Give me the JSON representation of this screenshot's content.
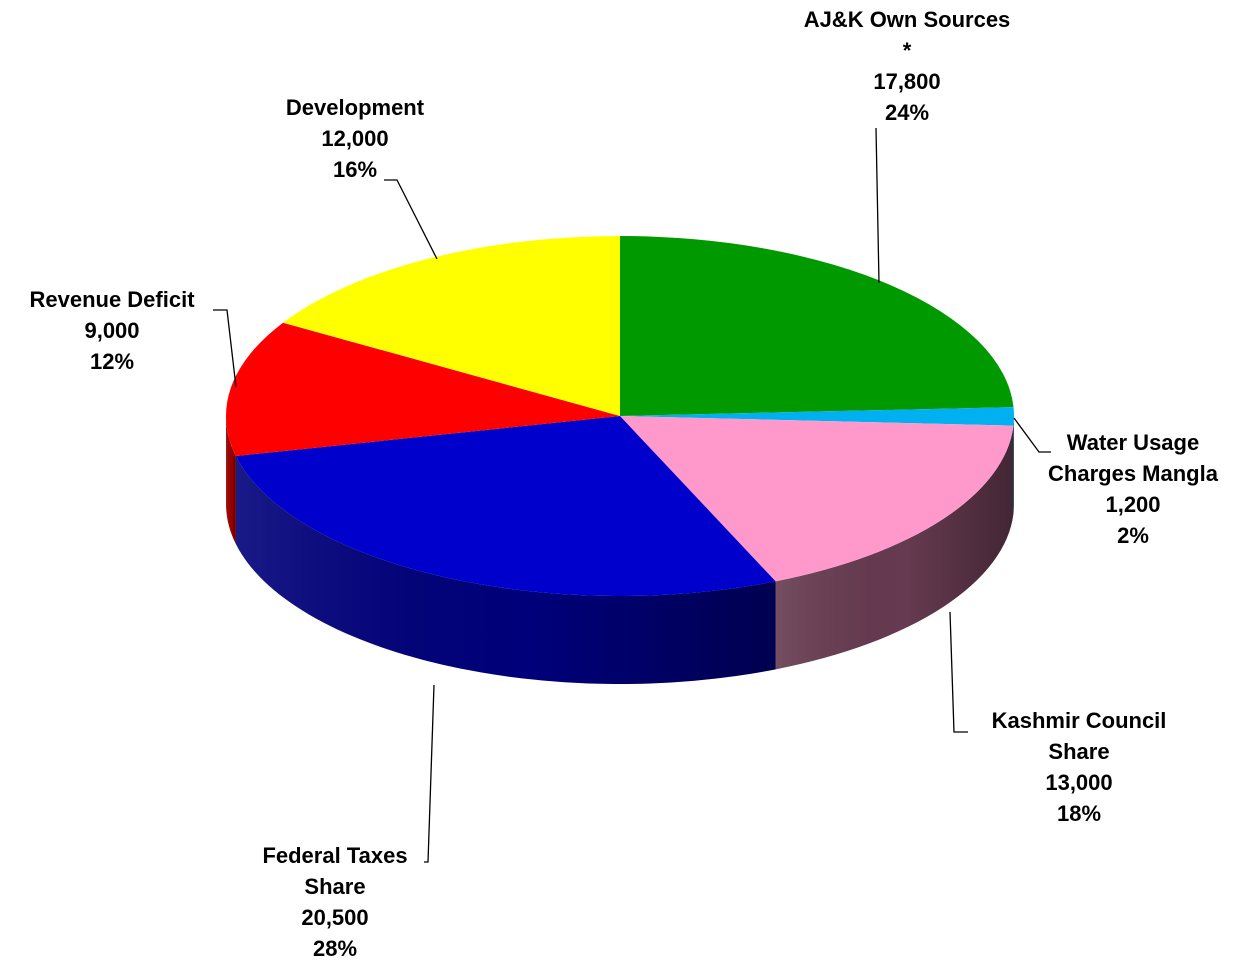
{
  "chart_data": {
    "type": "pie",
    "style": "3d",
    "start_angle_deg": 0,
    "direction": "clockwise",
    "slices": [
      {
        "name_lines": [
          "AJ&K Own Sources",
          "*"
        ],
        "value": 17800,
        "value_label": "17,800",
        "percent_label": "24%",
        "color": "#009900",
        "side_color": "#006600"
      },
      {
        "name_lines": [
          "Water Usage",
          "Charges Mangla"
        ],
        "value": 1200,
        "value_label": "1,200",
        "percent_label": "2%",
        "color": "#00B0F0",
        "side_color": "#0077A8"
      },
      {
        "name_lines": [
          "Kashmir Council",
          "Share"
        ],
        "value": 13000,
        "value_label": "13,000",
        "percent_label": "18%",
        "color": "#FF99CC",
        "side_color": "#663A50"
      },
      {
        "name_lines": [
          "Federal Taxes",
          "Share"
        ],
        "value": 20500,
        "value_label": "20,500",
        "percent_label": "28%",
        "color": "#0000CC",
        "side_color": "#00007A"
      },
      {
        "name_lines": [
          "Revenue Deficit"
        ],
        "value": 9000,
        "value_label": "9,000",
        "percent_label": "12%",
        "color": "#FF0000",
        "side_color": "#990000"
      },
      {
        "name_lines": [
          "Development"
        ],
        "value": 12000,
        "value_label": "12,000",
        "percent_label": "16%",
        "color": "#FFFF00",
        "side_color": "#999900"
      }
    ]
  }
}
